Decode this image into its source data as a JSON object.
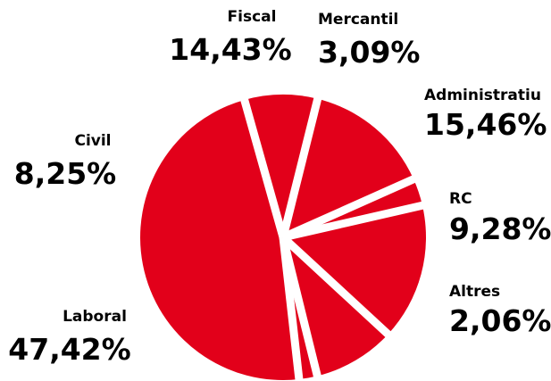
{
  "chart_data": {
    "type": "pie",
    "color": "#e2001a",
    "separator_color": "#ffffff",
    "slices": [
      {
        "label": "Fiscal",
        "value": 14.43,
        "value_label": "14,43%"
      },
      {
        "label": "Mercantil",
        "value": 3.09,
        "value_label": "3,09%"
      },
      {
        "label": "Administratiu",
        "value": 15.46,
        "value_label": "15,46%"
      },
      {
        "label": "RC",
        "value": 9.28,
        "value_label": "9,28%"
      },
      {
        "label": "Altres",
        "value": 2.06,
        "value_label": "2,06%"
      },
      {
        "label": "Laboral",
        "value": 47.42,
        "value_label": "47,42%"
      },
      {
        "label": "Civil",
        "value": 8.25,
        "value_label": "8,25%"
      }
    ]
  }
}
